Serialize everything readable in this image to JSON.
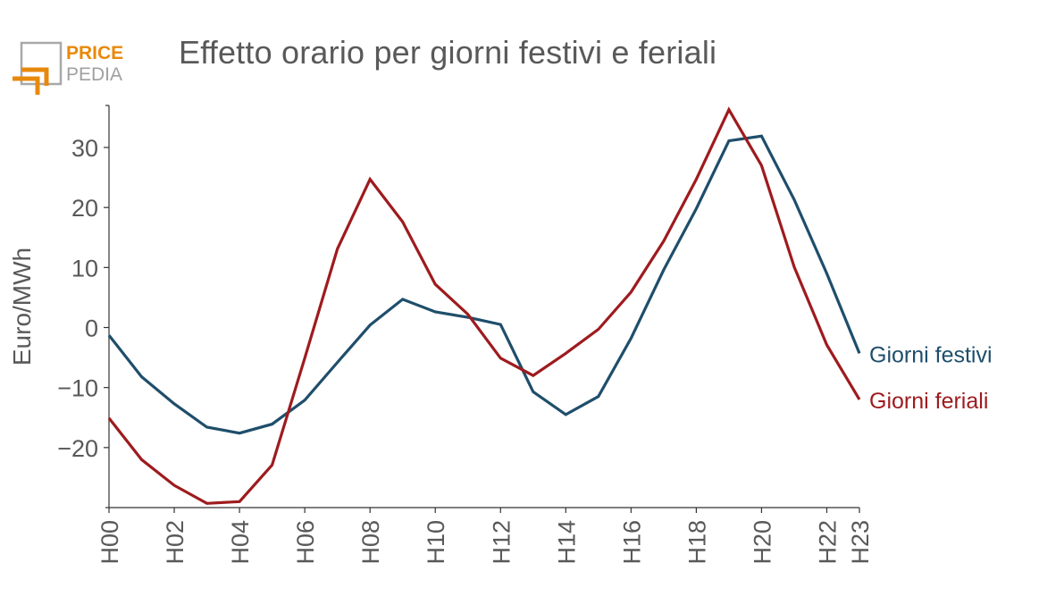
{
  "brand": {
    "line1": "PRICE",
    "line2": "PEDIA",
    "colors": {
      "orange": "#e8890c",
      "gray": "#a0a0a0"
    }
  },
  "chart_data": {
    "type": "line",
    "title": "Effetto orario per giorni festivi e feriali",
    "xlabel": "",
    "ylabel": "Euro/MWh",
    "categories": [
      "H00",
      "H01",
      "H02",
      "H03",
      "H04",
      "H05",
      "H06",
      "H07",
      "H08",
      "H09",
      "H10",
      "H11",
      "H12",
      "H13",
      "H14",
      "H15",
      "H16",
      "H17",
      "H18",
      "H19",
      "H20",
      "H21",
      "H22",
      "H23"
    ],
    "tick_labels": [
      "H00",
      "H02",
      "H04",
      "H06",
      "H08",
      "H10",
      "H12",
      "H14",
      "H16",
      "H18",
      "H20",
      "H22",
      "H23"
    ],
    "yticks": [
      -20,
      -10,
      0,
      10,
      20,
      30
    ],
    "ylim": [
      -30,
      37
    ],
    "grid": false,
    "legend": "right end of lines",
    "series": [
      {
        "name": "Giorni festivi",
        "color": "#1f4e6b",
        "values": [
          -1.3,
          -8.2,
          -12.7,
          -16.6,
          -17.6,
          -16.1,
          -12.1,
          -5.8,
          0.4,
          4.7,
          2.6,
          1.7,
          0.5,
          -10.7,
          -14.5,
          -11.5,
          -1.8,
          9.6,
          19.8,
          31.1,
          31.9,
          21.3,
          9.0,
          -4.3
        ]
      },
      {
        "name": "Giorni feriali",
        "color": "#9e1b1e",
        "values": [
          -15.1,
          -22.0,
          -26.3,
          -29.3,
          -29.0,
          -22.9,
          -5.1,
          13.1,
          24.7,
          17.6,
          7.2,
          2.2,
          -5.1,
          -8.0,
          -4.3,
          -0.3,
          5.9,
          14.4,
          24.7,
          36.3,
          27.0,
          10.1,
          -2.9,
          -12.0
        ]
      }
    ]
  }
}
